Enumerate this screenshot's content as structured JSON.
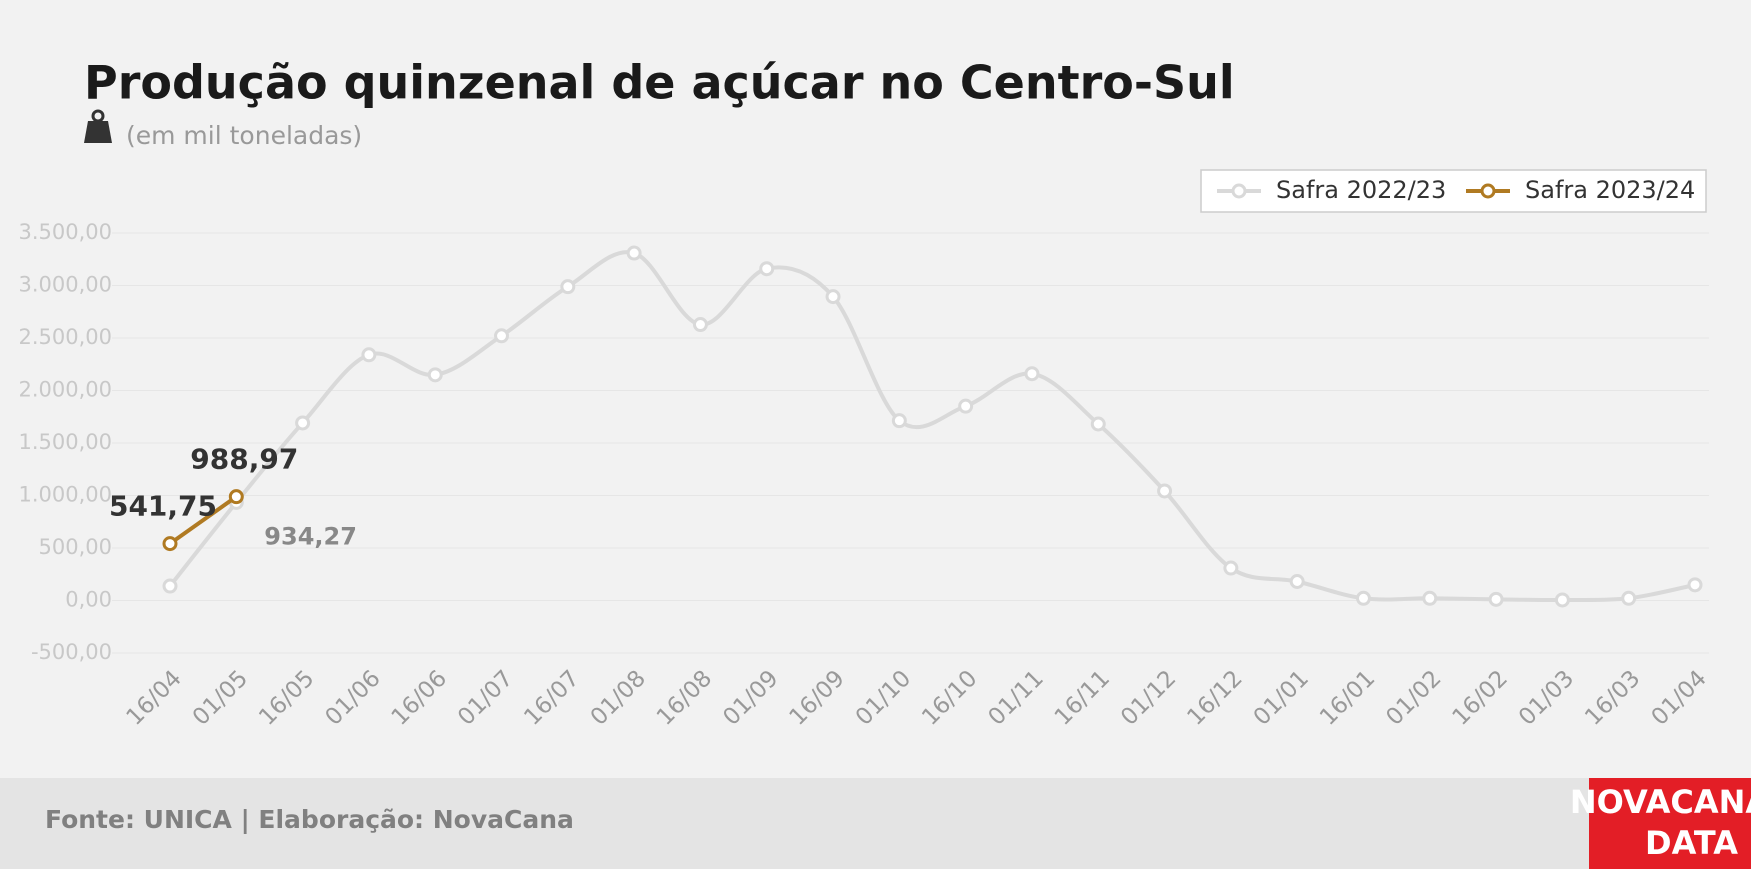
{
  "chart_data": {
    "type": "line",
    "title": "Produção quinzenal de açúcar no Centro-Sul",
    "subtitle": "(em mil toneladas)",
    "source": "Fonte: UNICA | Elaboração: NovaCana",
    "logo": [
      "NOVACANA",
      "DATA"
    ],
    "categories": [
      "16/04",
      "01/05",
      "16/05",
      "01/06",
      "16/06",
      "01/07",
      "16/07",
      "01/08",
      "16/08",
      "01/09",
      "16/09",
      "01/10",
      "16/10",
      "01/11",
      "16/11",
      "01/12",
      "16/12",
      "01/01",
      "16/01",
      "01/02",
      "16/02",
      "01/03",
      "16/03",
      "01/04"
    ],
    "series": [
      {
        "name": "Safra 2022/23",
        "color": "#d9d9d9",
        "values": [
          138,
          934.27,
          1691,
          2340,
          2149,
          2521,
          2989,
          3309,
          2628,
          3160,
          2894,
          1713,
          1851,
          2160,
          1681,
          1043,
          309,
          181,
          21,
          21,
          11,
          5,
          21,
          149
        ],
        "value_labels": [
          null,
          "934,27",
          null,
          null,
          null,
          null,
          null,
          null,
          null,
          null,
          null,
          null,
          null,
          null,
          null,
          null,
          null,
          null,
          null,
          null,
          null,
          null,
          null,
          null
        ]
      },
      {
        "name": "Safra 2023/24",
        "color": "#b07a22",
        "values": [
          541.75,
          988.97,
          null,
          null,
          null,
          null,
          null,
          null,
          null,
          null,
          null,
          null,
          null,
          null,
          null,
          null,
          null,
          null,
          null,
          null,
          null,
          null,
          null,
          null
        ],
        "value_labels": [
          "541,75",
          "988,97",
          null,
          null,
          null,
          null,
          null,
          null,
          null,
          null,
          null,
          null,
          null,
          null,
          null,
          null,
          null,
          null,
          null,
          null,
          null,
          null,
          null,
          null
        ]
      }
    ],
    "ylim": [
      -500,
      3500
    ],
    "yticks": [
      {
        "value": -500,
        "label": "-500,00"
      },
      {
        "value": 0,
        "label": "0,00"
      },
      {
        "value": 500,
        "label": "500,00"
      },
      {
        "value": 1000,
        "label": "1.000,00"
      },
      {
        "value": 1500,
        "label": "1.500,00"
      },
      {
        "value": 2000,
        "label": "2.000,00"
      },
      {
        "value": 2500,
        "label": "2.500,00"
      },
      {
        "value": 3000,
        "label": "3.000,00"
      },
      {
        "value": 3500,
        "label": "3.500,00"
      }
    ],
    "grid": true,
    "legend": "top-right"
  }
}
